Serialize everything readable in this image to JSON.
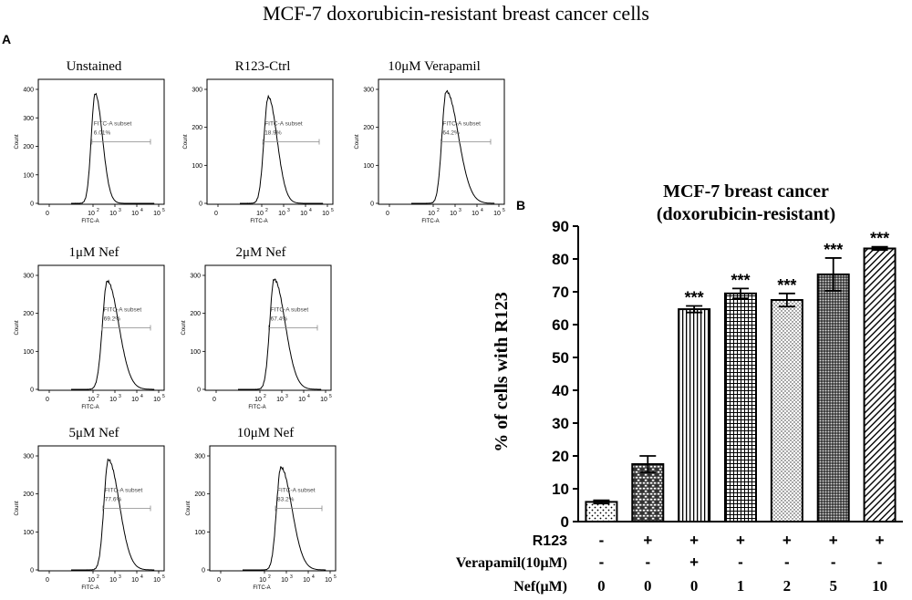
{
  "figure_title": "MCF-7 doxorubicin-resistant breast cancer cells",
  "panel_a_label": "A",
  "panel_b_label": "B",
  "colors": {
    "ink": "#000000",
    "gate": "#888888",
    "axis": "#444444"
  },
  "chart_data": [
    {
      "type": "histogram-panels",
      "xlabel": "FITC-A",
      "ylabel": "Count",
      "gate_label": "FITC-A subset",
      "x_ticks": [
        "0",
        "10",
        "10",
        "10",
        "10"
      ],
      "x_tick_exponents": [
        "",
        "2",
        "3",
        "4",
        "5"
      ],
      "panels": [
        {
          "title": "Unstained",
          "yticks": [
            "0",
            "100",
            "200",
            "300",
            "400"
          ],
          "ymax": 400,
          "peak_decade": 2.1,
          "peak_height": 385,
          "width": 0.18,
          "tail": 0.15,
          "subset_pct": "6.01%"
        },
        {
          "title": "R123-Ctrl",
          "yticks": [
            "0",
            "100",
            "200",
            "300"
          ],
          "ymax": 300,
          "peak_decade": 2.3,
          "peak_height": 280,
          "width": 0.2,
          "tail": 0.2,
          "subset_pct": "18.9%"
        },
        {
          "title": "10μM Verapamil",
          "yticks": [
            "0",
            "100",
            "200",
            "300"
          ],
          "ymax": 300,
          "peak_decade": 2.6,
          "peak_height": 295,
          "width": 0.2,
          "tail": 0.35,
          "subset_pct": "64.2%"
        },
        {
          "title": "1μM Nef",
          "yticks": [
            "0",
            "100",
            "200",
            "300"
          ],
          "ymax": 300,
          "peak_decade": 2.65,
          "peak_height": 285,
          "width": 0.22,
          "tail": 0.3,
          "subset_pct": "69.2%"
        },
        {
          "title": "2μM Nef",
          "yticks": [
            "0",
            "100",
            "200",
            "300"
          ],
          "ymax": 300,
          "peak_decade": 2.65,
          "peak_height": 290,
          "width": 0.2,
          "tail": 0.3,
          "subset_pct": "67.4%"
        },
        {
          "title": "5μM Nef",
          "yticks": [
            "0",
            "100",
            "200",
            "300"
          ],
          "ymax": 300,
          "peak_decade": 2.7,
          "peak_height": 290,
          "width": 0.2,
          "tail": 0.3,
          "subset_pct": "77.6%"
        },
        {
          "title": "10μM Nef",
          "yticks": [
            "0",
            "100",
            "200",
            "300"
          ],
          "ymax": 300,
          "peak_decade": 2.75,
          "peak_height": 270,
          "width": 0.2,
          "tail": 0.3,
          "subset_pct": "83.2%"
        }
      ]
    },
    {
      "type": "bar",
      "title_line1": "MCF-7 breast cancer",
      "title_line2": "(doxorubicin-resistant)",
      "ylabel": "% of cells with R123",
      "ylim": [
        0,
        90
      ],
      "yticks": [
        0,
        10,
        20,
        30,
        40,
        50,
        60,
        70,
        80,
        90
      ],
      "values": [
        6,
        17.5,
        64.7,
        69.5,
        67.5,
        75.3,
        83.2
      ],
      "errors": [
        0.5,
        2.5,
        1.0,
        1.5,
        2.0,
        5.0,
        0.5
      ],
      "significance": [
        "",
        "",
        "***",
        "***",
        "***",
        "***",
        "***"
      ],
      "patterns": [
        "dots",
        "bricks",
        "vlines",
        "grid",
        "fine-dots",
        "dense-dots",
        "diagonal"
      ],
      "conditions": [
        {
          "label": "R123",
          "values": [
            "-",
            "+",
            "+",
            "+",
            "+",
            "+",
            "+"
          ]
        },
        {
          "label": "Verapamil(10μM)",
          "values": [
            "-",
            "-",
            "+",
            "-",
            "-",
            "-",
            "-"
          ]
        },
        {
          "label": "Nef(μM)",
          "values": [
            "0",
            "0",
            "0",
            "1",
            "2",
            "5",
            "10"
          ]
        }
      ]
    }
  ]
}
